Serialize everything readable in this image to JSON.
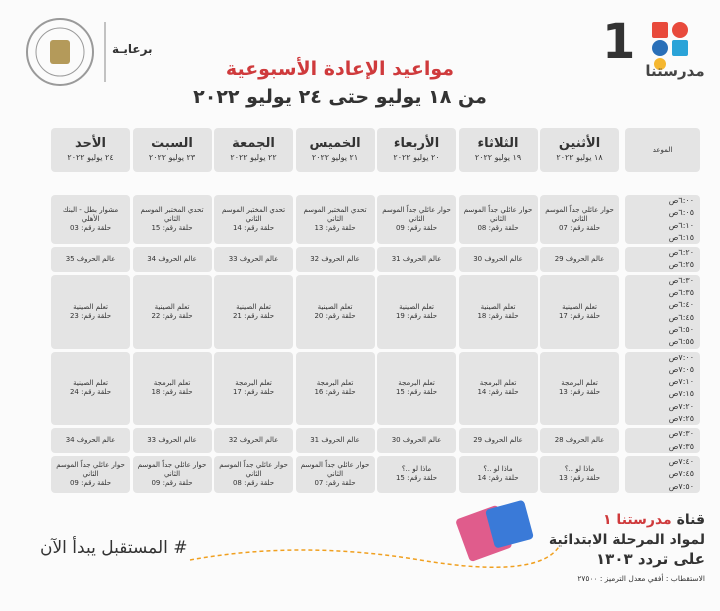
{
  "header": {
    "logo_number": "1",
    "logo_text": "مدرستنا",
    "sponsor": "برعايـة",
    "title": "مواعيد الإعادة الأسبوعية",
    "subtitle": "من ١٨ يوليو حتى ٢٤ يوليو ٢٠٢٢"
  },
  "table": {
    "time_header": "الموعد",
    "days": [
      {
        "name": "الأثنين",
        "date": "١٨ يوليو ٢٠٢٢"
      },
      {
        "name": "الثلاثاء",
        "date": "١٩ يوليو ٢٠٢٢"
      },
      {
        "name": "الأربعاء",
        "date": "٢٠ يوليو ٢٠٢٢"
      },
      {
        "name": "الخميس",
        "date": "٢١ يوليو ٢٠٢٢"
      },
      {
        "name": "الجمعة",
        "date": "٢٢ يوليو ٢٠٢٢"
      },
      {
        "name": "السبت",
        "date": "٢٣ يوليو ٢٠٢٢"
      },
      {
        "name": "الأحد",
        "date": "٢٤ يوليو ٢٠٢٢"
      }
    ],
    "rows": [
      {
        "times": [
          "٦:٠٠ص",
          "٦:٠٥ص",
          "٦:١٠ص",
          "٦:١٥ص"
        ],
        "cells": [
          [
            "حوار عائلي جداً الموسم الثاني",
            "حلقة رقم: 07"
          ],
          [
            "حوار عائلي جداً الموسم الثاني",
            "حلقة رقم: 08"
          ],
          [
            "حوار عائلي جداً الموسم الثاني",
            "حلقة رقم: 09"
          ],
          [
            "تحدي المختبر الموسم الثاني",
            "حلقة رقم: 13"
          ],
          [
            "تحدي المختبر الموسم الثاني",
            "حلقة رقم: 14"
          ],
          [
            "تحدي المختبر الموسم الثاني",
            "حلقة رقم: 15"
          ],
          [
            "مشوار بطل - البنك الأهلي",
            "حلقة رقم: 03"
          ]
        ]
      },
      {
        "times": [
          "٦:٢٠ص",
          "٦:٢٥ص"
        ],
        "cells": [
          [
            "عالم الحروف 29"
          ],
          [
            "عالم الحروف 30"
          ],
          [
            "عالم الحروف 31"
          ],
          [
            "عالم الحروف 32"
          ],
          [
            "عالم الحروف 33"
          ],
          [
            "عالم الحروف 34"
          ],
          [
            "عالم الحروف 35"
          ]
        ]
      },
      {
        "times": [
          "٦:٣٠ص",
          "٦:٣٥ص",
          "٦:٤٠ص",
          "٦:٤٥ص",
          "٦:٥٠ص",
          "٦:٥٥ص"
        ],
        "cells": [
          [
            "تعلم الصينية",
            "حلقة رقم: 17"
          ],
          [
            "تعلم الصينية",
            "حلقة رقم: 18"
          ],
          [
            "تعلم الصينية",
            "حلقة رقم: 19"
          ],
          [
            "تعلم الصينية",
            "حلقة رقم: 20"
          ],
          [
            "تعلم الصينية",
            "حلقة رقم: 21"
          ],
          [
            "تعلم الصينية",
            "حلقة رقم: 22"
          ],
          [
            "تعلم الصينية",
            "حلقة رقم: 23"
          ]
        ]
      },
      {
        "times": [
          "٧:٠٠ص",
          "٧:٠٥ص",
          "٧:١٠ص",
          "٧:١٥ص",
          "٧:٢٠ص",
          "٧:٢٥ص"
        ],
        "cells": [
          [
            "تعلم البرمجة",
            "حلقة رقم: 13"
          ],
          [
            "تعلم البرمجة",
            "حلقة رقم: 14"
          ],
          [
            "تعلم البرمجة",
            "حلقة رقم: 15"
          ],
          [
            "تعلم البرمجة",
            "حلقة رقم: 16"
          ],
          [
            "تعلم البرمجة",
            "حلقة رقم: 17"
          ],
          [
            "تعلم البرمجة",
            "حلقة رقم: 18"
          ],
          [
            "تعلم الصينية",
            "حلقة رقم: 24"
          ]
        ]
      },
      {
        "times": [
          "٧:٣٠ص",
          "٧:٣٥ص"
        ],
        "cells": [
          [
            "عالم الحروف 28"
          ],
          [
            "عالم الحروف 29"
          ],
          [
            "عالم الحروف 30"
          ],
          [
            "عالم الحروف 31"
          ],
          [
            "عالم الحروف 32"
          ],
          [
            "عالم الحروف 33"
          ],
          [
            "عالم الحروف 34"
          ]
        ]
      },
      {
        "times": [
          "٧:٤٠ص",
          "٧:٤٥ص",
          "٧:٥٠ص"
        ],
        "cells": [
          [
            "ماذا لو ..؟",
            "حلقة رقم: 13"
          ],
          [
            "ماذا لو ..؟",
            "حلقة رقم: 14"
          ],
          [
            "ماذا لو ..؟",
            "حلقة رقم: 15"
          ],
          [
            "حوار عائلي جداً الموسم الثاني",
            "حلقة رقم: 07"
          ],
          [
            "حوار عائلي جداً الموسم الثاني",
            "حلقة رقم: 08"
          ],
          [
            "حوار عائلي جداً الموسم الثاني",
            "حلقة رقم: 09"
          ],
          [
            "حوار عائلي جداً الموسم الثاني",
            "حلقة رقم: 09"
          ]
        ]
      }
    ]
  },
  "footer": {
    "hashtag": "# المستقبل يبدأ الآن",
    "channel_label": "قناة",
    "channel_name": "مدرستنا ١",
    "subject": "لمواد المرحلة الابتدائية",
    "frequency": "على تردد ١٣٠٣",
    "signal": "الاستقطاب : أفقي معدل الترميز : ٢٧٥٠٠"
  }
}
